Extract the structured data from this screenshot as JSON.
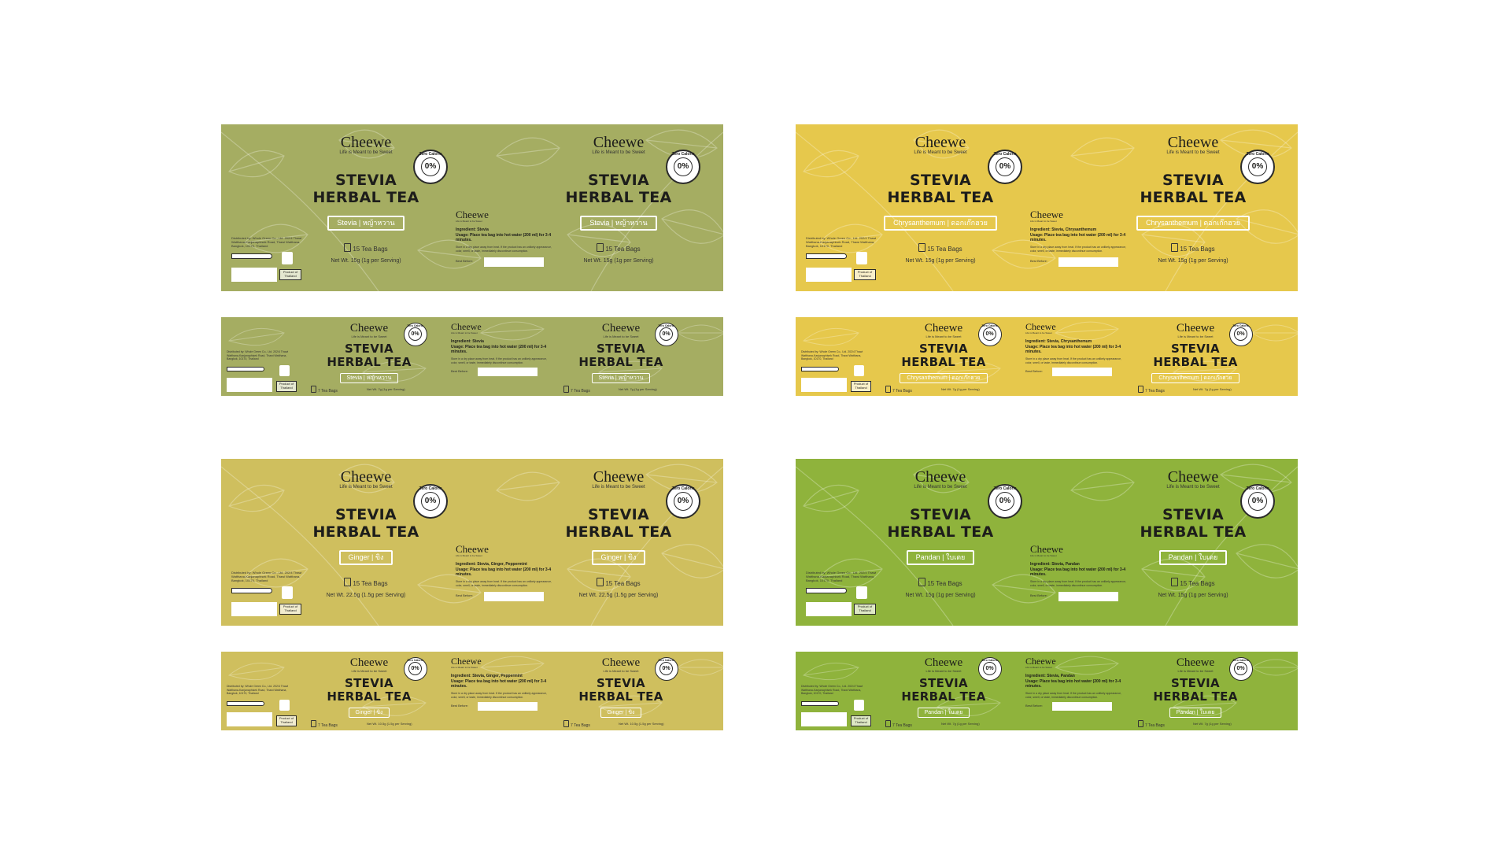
{
  "brand": "Cheewe",
  "tagline": "Life is Meant to be Sweet",
  "title_line1": "STEVIA",
  "title_line2": "HERBAL TEA",
  "badge": {
    "percent": "0%",
    "caption": "Zero Calorie"
  },
  "distributor": "Distributed by: Whole Green Co., Ltd. 202/4 Thawi Watthana-Kanjanaphisek Road, Thawi Watthana, Bangkok, 10170, Thailand",
  "product_of": "Product of Thailand",
  "usage": "Usage: Place tea bag into hot water (200 ml) for 3-4 minutes.",
  "storage": "Store in a dry place away from heat. If the product has an unlikely appearance, color, smell, or taste, immediately discontinue consumption.",
  "best_before": "Best Before:",
  "colors": {
    "stevia": "#a5ad62",
    "chrysanthemum": "#e6c84c",
    "ginger": "#cfbf5e",
    "pandan": "#8fb33c",
    "leaf_line": "#ffffff"
  },
  "stevia": {
    "flavor": "Stevia | หญ้าหวาน",
    "ingredient": "Ingredient: Stevia",
    "big": {
      "bags": "15 Tea Bags",
      "net": "Net Wt. 15g (1g per Serving)"
    },
    "small": {
      "bags": "7 Tea Bags",
      "net": "Net Wt. 7g (1g per Serving)"
    }
  },
  "chrysanthemum": {
    "flavor": "Chrysanthemum | ดอกเก๊กฮวย",
    "ingredient": "Ingredient: Stevia, Chrysanthemum",
    "big": {
      "bags": "15 Tea Bags",
      "net": "Net Wt. 15g (1g per Serving)"
    },
    "small": {
      "bags": "7 Tea Bags",
      "net": "Net Wt. 7g (1g per Serving)"
    }
  },
  "ginger": {
    "flavor": "Ginger | ขิง",
    "ingredient": "Ingredient: Stevia, Ginger, Peppermint",
    "big": {
      "bags": "15 Tea Bags",
      "net": "Net Wt. 22.5g (1.5g per Serving)"
    },
    "small": {
      "bags": "7 Tea Bags",
      "net": "Net Wt. 10.5g (1.5g per Serving)"
    }
  },
  "pandan": {
    "flavor": "Pandan | ใบเตย",
    "ingredient": "Ingredient: Stevia, Pandan",
    "big": {
      "bags": "15 Tea Bags",
      "net": "Net Wt. 15g (1g per Serving)"
    },
    "small": {
      "bags": "7 Tea Bags",
      "net": "Net Wt. 7g (1g per Serving)"
    }
  }
}
